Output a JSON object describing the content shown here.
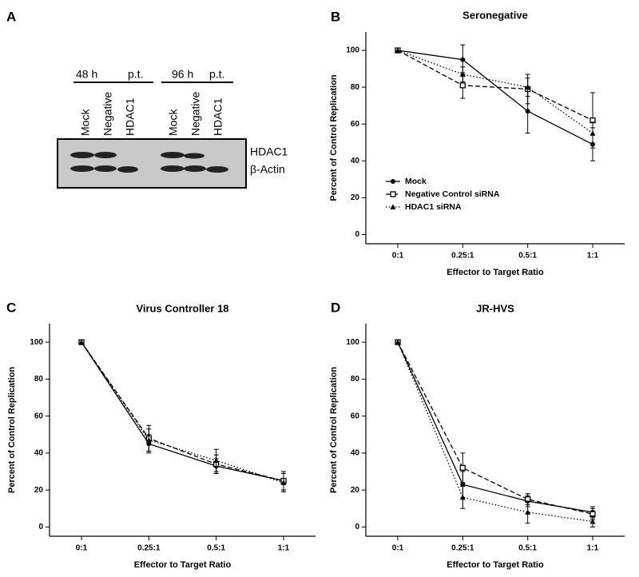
{
  "panel_letters": [
    "A",
    "B",
    "C",
    "D"
  ],
  "blot": {
    "groups": [
      {
        "time": "48 h",
        "suffix": "p.t."
      },
      {
        "time": "96 h",
        "suffix": "p.t."
      }
    ],
    "lanes": [
      "Mock",
      "Negative",
      "HDAC1",
      "Mock",
      "Negative",
      "HDAC1"
    ],
    "rows": [
      "HDAC1",
      "β-Actin"
    ]
  },
  "chart_data": [
    {
      "type": "line",
      "title": "Seronegative",
      "x_label": "Effector to Target Ratio",
      "y_label": "Percent of Control Replication",
      "categories": [
        "0:1",
        "0.25:1",
        "0.5:1",
        "1:1"
      ],
      "ylim": [
        -5,
        110
      ],
      "yticks": [
        0,
        20,
        40,
        60,
        80,
        100
      ],
      "legend": "lower left",
      "series": [
        {
          "name": "Mock",
          "color": "#000000",
          "dash": "solid",
          "marker": "circle",
          "values": [
            100,
            95,
            67,
            49
          ],
          "errors": [
            0,
            8,
            12,
            9
          ]
        },
        {
          "name": "Negative Control siRNA",
          "color": "#000000",
          "dash": "dashed",
          "marker": "open-square",
          "values": [
            100,
            81,
            79,
            62
          ],
          "errors": [
            0,
            7,
            8,
            15
          ]
        },
        {
          "name": "HDAC1 siRNA",
          "color": "#000000",
          "dash": "dotted",
          "marker": "triangle",
          "values": [
            100,
            87,
            80,
            55
          ],
          "errors": [
            0,
            4,
            5,
            6
          ]
        }
      ]
    },
    {
      "type": "line",
      "title": "Virus Controller 18",
      "x_label": "Effector to Target Ratio",
      "y_label": "Percent of Control Replication",
      "categories": [
        "0:1",
        "0.25:1",
        "0.5:1",
        "1:1"
      ],
      "ylim": [
        -5,
        110
      ],
      "yticks": [
        0,
        20,
        40,
        60,
        80,
        100
      ],
      "series": [
        {
          "color": "#000000",
          "dash": "solid",
          "marker": "circle",
          "values": [
            100,
            45,
            33,
            25
          ],
          "errors": [
            0,
            5,
            4,
            5
          ]
        },
        {
          "color": "#000000",
          "dash": "dashed",
          "marker": "open-square",
          "values": [
            100,
            48,
            34,
            25
          ],
          "errors": [
            0,
            7,
            5,
            5
          ]
        },
        {
          "color": "#000000",
          "dash": "dotted",
          "marker": "triangle",
          "values": [
            100,
            47,
            36,
            24
          ],
          "errors": [
            0,
            6,
            6,
            5
          ]
        }
      ]
    },
    {
      "type": "line",
      "title": "JR-HVS",
      "x_label": "Effector to Target Ratio",
      "y_label": "Percent of Control Replication",
      "categories": [
        "0:1",
        "0.25:1",
        "0.5:1",
        "1:1"
      ],
      "ylim": [
        -5,
        110
      ],
      "yticks": [
        0,
        20,
        40,
        60,
        80,
        100
      ],
      "series": [
        {
          "color": "#000000",
          "dash": "solid",
          "marker": "circle",
          "values": [
            100,
            23,
            14,
            8
          ],
          "errors": [
            0,
            7,
            3,
            3
          ]
        },
        {
          "color": "#000000",
          "dash": "dashed",
          "marker": "open-square",
          "values": [
            100,
            32,
            15,
            7
          ],
          "errors": [
            0,
            8,
            3,
            3
          ]
        },
        {
          "color": "#000000",
          "dash": "dotted",
          "marker": "triangle",
          "values": [
            100,
            16,
            8,
            3
          ],
          "errors": [
            0,
            6,
            6,
            3
          ]
        }
      ]
    }
  ]
}
